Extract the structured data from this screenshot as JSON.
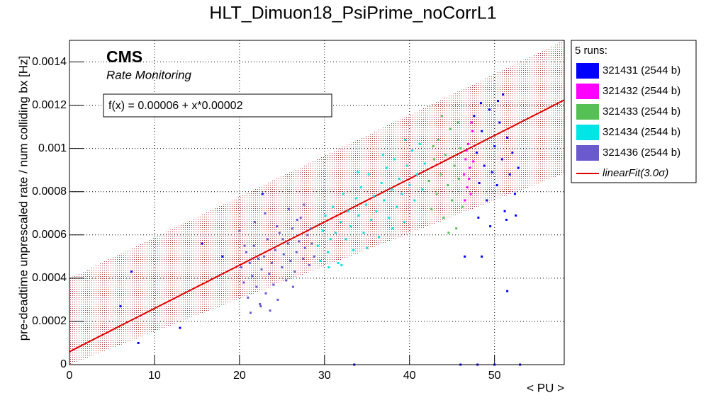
{
  "chart_data": {
    "type": "scatter",
    "title": "HLT_Dimuon18_PsiPrime_noCorrL1",
    "x_label": "< PU >",
    "y_label": "pre-deadtime unprescaled rate / num colliding bx [Hz]",
    "experiment": "CMS",
    "subtitle": "Rate Monitoring",
    "legend_title": "5 runs:",
    "xlim": [
      0,
      58.2
    ],
    "ylim": [
      0,
      0.0015
    ],
    "xticks": [
      0,
      10,
      20,
      30,
      40,
      50
    ],
    "yticks": [
      0,
      0.0002,
      0.0004,
      0.0006,
      0.0008,
      0.001,
      0.0012,
      0.0014
    ],
    "grid": true,
    "fit": {
      "name": "linearFit(3.0σ)",
      "label": "f(x) = 0.00006 + x*0.00002",
      "intercept": 6e-05,
      "slope": 2e-05,
      "band": 0.00034,
      "color": "#e00000"
    },
    "series": [
      {
        "name": "321431 (2544 b)",
        "color": "#0000ff",
        "x": [
          6,
          7.3,
          8.1,
          13,
          15.6,
          18,
          22.7,
          33.5,
          46,
          48,
          50,
          53,
          46.5,
          48.5,
          51.5,
          47.6,
          47.9,
          48.2,
          48.5,
          48.8,
          49.1,
          49.4,
          49.7,
          50,
          50.3,
          50.6,
          50.9,
          51.2,
          51.5,
          51.8,
          52.1,
          52.4,
          52.8,
          51,
          50.4,
          48.1,
          49.5,
          52.5,
          51.4,
          48.4
        ],
        "values": [
          0.00027,
          0.00043,
          0.0001,
          0.00017,
          0.00056,
          0.0005,
          0.00079,
          0,
          0,
          0,
          0,
          0,
          0.0005,
          0.0005,
          0.00034,
          0.00115,
          0.00098,
          0.00084,
          0.00108,
          0.00092,
          0.00076,
          0.00118,
          0.00089,
          0.00101,
          0.00083,
          0.00112,
          0.00095,
          0.00071,
          0.00105,
          0.00088,
          0.00098,
          0.00079,
          0.00091,
          0.00125,
          0.00122,
          0.00068,
          0.00064,
          0.00069,
          0.00067,
          0.00121
        ]
      },
      {
        "name": "321432 (2544 b)",
        "color": "#ff00ff",
        "x": [
          46.4,
          46.6,
          46.8,
          46.9,
          47.1,
          47.2,
          47.4,
          46.7,
          47,
          47.3,
          46.5,
          47.5
        ],
        "values": [
          0.00088,
          0.00095,
          0.00082,
          0.00102,
          0.00091,
          0.00079,
          0.00108,
          0.00099,
          0.00086,
          0.00112,
          0.00076,
          0.00094
        ]
      },
      {
        "name": "321433 (2544 b)",
        "color": "#55c155",
        "x": [
          42.3,
          42.6,
          42.9,
          43.2,
          43.4,
          43.7,
          44,
          44.2,
          44.5,
          44.8,
          45,
          45.3,
          45.5,
          45.8,
          46,
          46.2,
          43.8,
          44.6,
          42.8,
          45.7
        ],
        "values": [
          0.00085,
          0.00072,
          0.00095,
          0.00079,
          0.00104,
          0.00088,
          0.00068,
          0.00097,
          0.00083,
          0.00109,
          0.00076,
          0.00092,
          0.00063,
          0.00086,
          0.001,
          0.00073,
          0.00115,
          0.00061,
          0.00101,
          0.00112
        ]
      },
      {
        "name": "321434 (2544 b)",
        "color": "#00e5e5",
        "x": [
          29.2,
          29.5,
          29.8,
          30.1,
          30.4,
          30.7,
          31,
          31.3,
          31.6,
          31.9,
          32.2,
          32.5,
          32.8,
          33.1,
          33.4,
          33.7,
          34,
          34.3,
          34.6,
          34.9,
          35.2,
          35.5,
          35.8,
          36.1,
          36.4,
          36.7,
          37,
          37.3,
          37.6,
          37.9,
          38.2,
          38.5,
          38.8,
          39.1,
          39.4,
          39.7,
          40,
          40.3,
          40.6,
          40.9,
          41.2,
          41.5,
          41.8,
          30.5,
          32,
          35,
          38,
          39.5,
          36.9,
          33.9
        ],
        "values": [
          0.00055,
          0.00048,
          0.00062,
          0.00069,
          0.00052,
          0.00058,
          0.00073,
          0.00061,
          0.00047,
          0.00066,
          0.00079,
          0.00058,
          0.00071,
          0.00064,
          0.00053,
          0.00077,
          0.00069,
          0.00082,
          0.00061,
          0.00074,
          0.00088,
          0.00067,
          0.00078,
          0.00071,
          0.00059,
          0.00084,
          0.00076,
          0.00091,
          0.00068,
          0.00081,
          0.00095,
          0.00073,
          0.00086,
          0.00079,
          0.00066,
          0.00092,
          0.00083,
          0.00099,
          0.00076,
          0.00088,
          0.00102,
          0.00081,
          0.00093,
          0.00045,
          0.00046,
          0.00054,
          0.00063,
          0.00104,
          0.00097,
          0.00089
        ]
      },
      {
        "name": "321436 (2544 b)",
        "color": "#6a5acd",
        "x": [
          20.2,
          20.5,
          20.8,
          21,
          21.2,
          21.5,
          21.7,
          22,
          22.2,
          22.4,
          22.6,
          22.9,
          23.1,
          23.3,
          23.5,
          23.8,
          24,
          24.2,
          24.5,
          24.7,
          25,
          25.2,
          25.5,
          25.7,
          26,
          26.2,
          26.5,
          26.7,
          27,
          27.2,
          27.5,
          27.7,
          28,
          28.2,
          28.5,
          28.8,
          20,
          21.8,
          23,
          24.4,
          25.8,
          26.8,
          22.5,
          21.3,
          23.6,
          27.6,
          28.4,
          20.6,
          25.1,
          26.3
        ],
        "values": [
          0.00045,
          0.00038,
          0.00052,
          0.00031,
          0.00047,
          0.00041,
          0.00055,
          0.00036,
          0.00049,
          0.00028,
          0.00044,
          0.0005,
          0.00033,
          0.00058,
          0.00042,
          0.00047,
          0.00037,
          0.00053,
          0.0003,
          0.00061,
          0.00045,
          0.00051,
          0.00039,
          0.00056,
          0.00048,
          0.00063,
          0.00043,
          0.00052,
          0.00057,
          0.00068,
          0.00049,
          0.00054,
          0.0006,
          0.00046,
          0.00056,
          0.0005,
          0.00062,
          0.00066,
          0.0007,
          0.00064,
          0.00072,
          0.00067,
          0.00027,
          0.00024,
          0.00025,
          0.00074,
          0.00063,
          0.00055,
          0.00058,
          0.00036
        ]
      }
    ]
  }
}
